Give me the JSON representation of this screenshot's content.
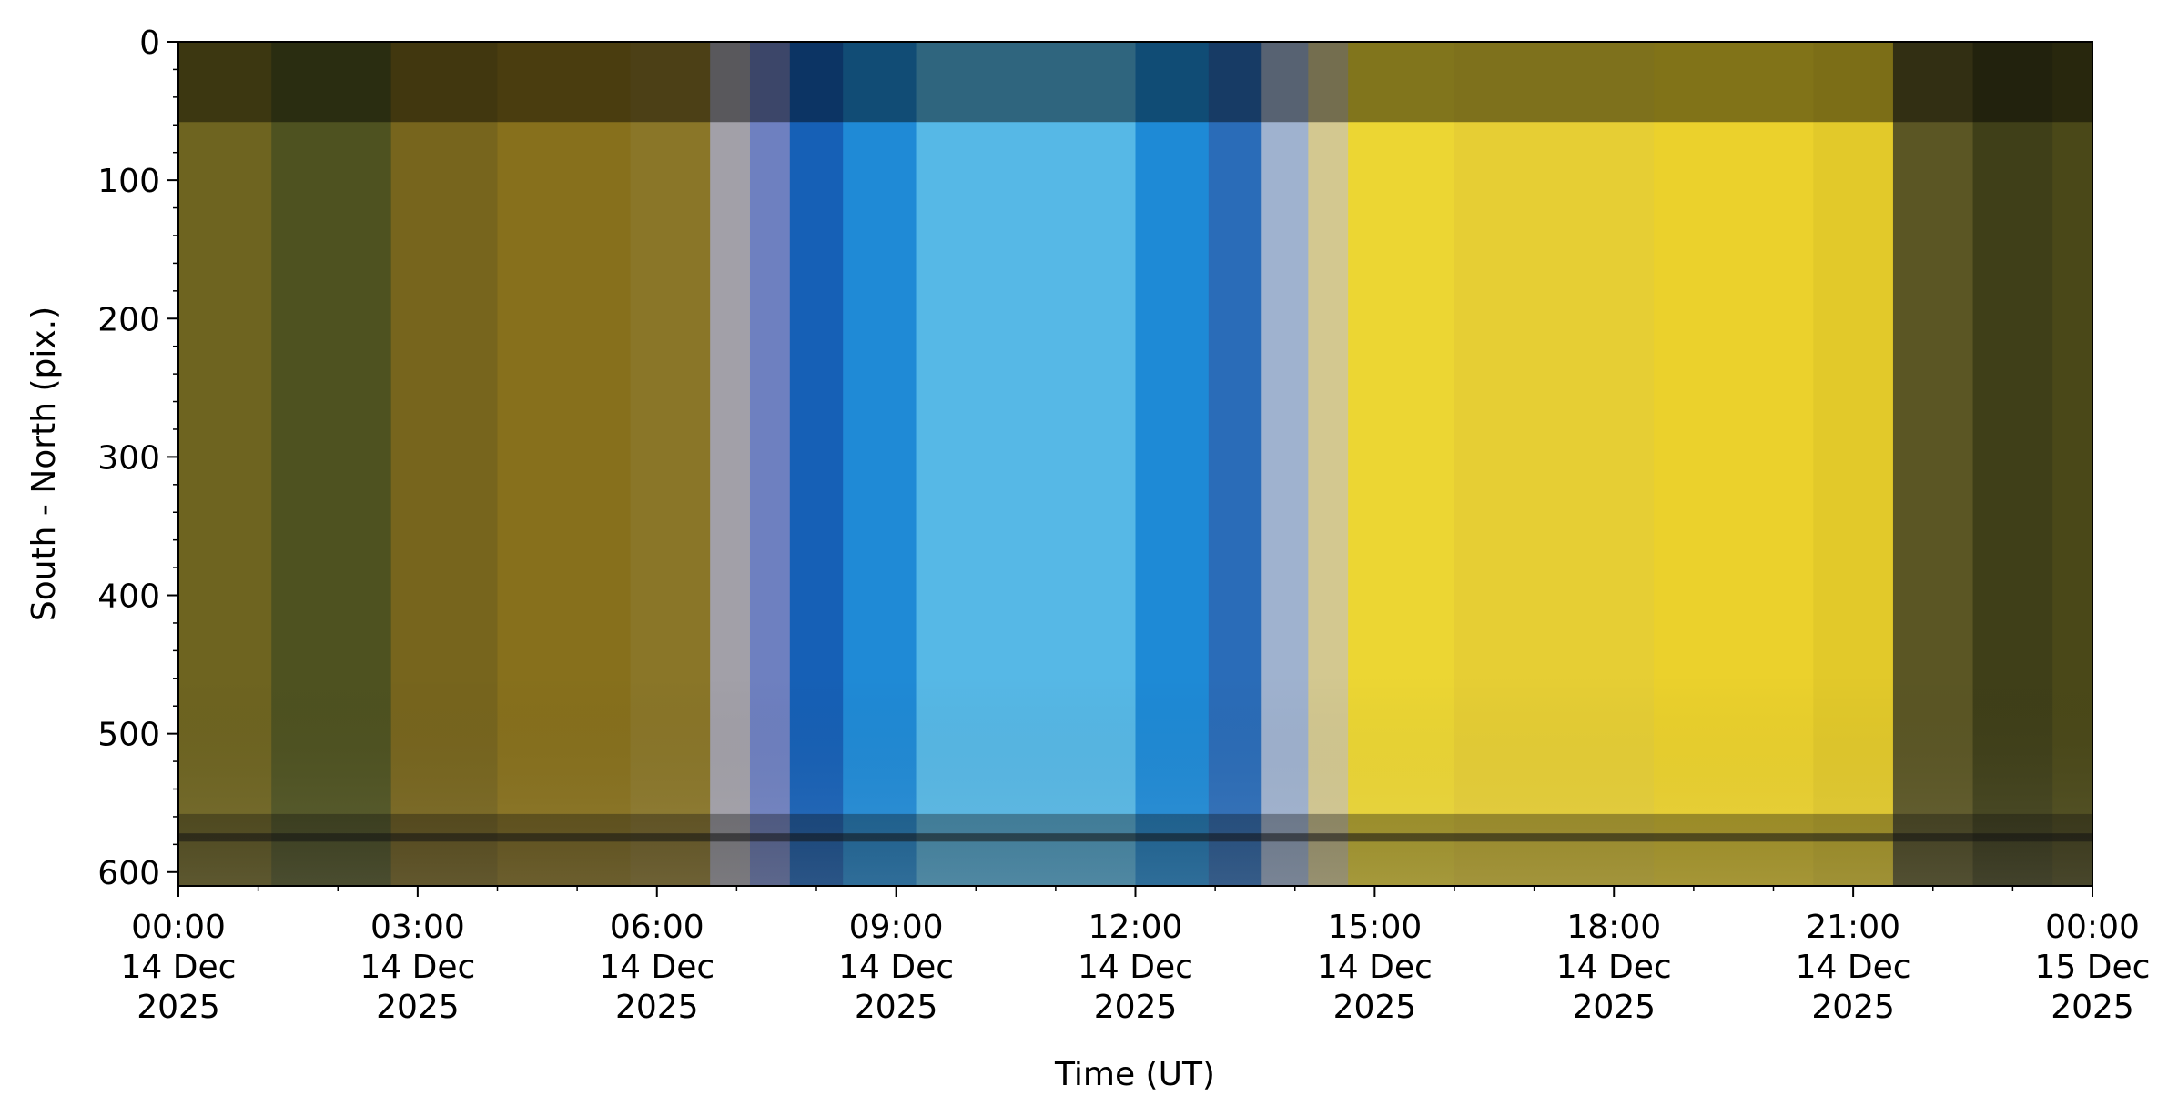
{
  "chart_data": {
    "type": "heatmap",
    "title": "",
    "xlabel": "Time (UT)",
    "ylabel": "South - North (pix.)",
    "xlim": [
      "2025-12-14T00:00",
      "2025-12-15T00:00"
    ],
    "ylim": [
      610,
      0
    ],
    "grid": false,
    "x_ticks": [
      {
        "time": "2025-12-14T00:00",
        "lines": [
          "00:00",
          "14 Dec",
          "2025"
        ]
      },
      {
        "time": "2025-12-14T03:00",
        "lines": [
          "03:00",
          "14 Dec",
          "2025"
        ]
      },
      {
        "time": "2025-12-14T06:00",
        "lines": [
          "06:00",
          "14 Dec",
          "2025"
        ]
      },
      {
        "time": "2025-12-14T09:00",
        "lines": [
          "09:00",
          "14 Dec",
          "2025"
        ]
      },
      {
        "time": "2025-12-14T12:00",
        "lines": [
          "12:00",
          "14 Dec",
          "2025"
        ]
      },
      {
        "time": "2025-12-14T15:00",
        "lines": [
          "15:00",
          "14 Dec",
          "2025"
        ]
      },
      {
        "time": "2025-12-14T18:00",
        "lines": [
          "18:00",
          "14 Dec",
          "2025"
        ]
      },
      {
        "time": "2025-12-14T21:00",
        "lines": [
          "21:00",
          "14 Dec",
          "2025"
        ]
      },
      {
        "time": "2025-12-15T00:00",
        "lines": [
          "00:00",
          "15 Dec",
          "2025"
        ]
      }
    ],
    "y_ticks": [
      0,
      100,
      200,
      300,
      400,
      500,
      600
    ],
    "color_bands": [
      {
        "start": "2025-12-14T00:00",
        "end": "2025-12-14T01:10",
        "color": "#6e6420"
      },
      {
        "start": "2025-12-14T01:10",
        "end": "2025-12-14T02:40",
        "color": "#4e5220"
      },
      {
        "start": "2025-12-14T02:40",
        "end": "2025-12-14T04:00",
        "color": "#77651d"
      },
      {
        "start": "2025-12-14T04:00",
        "end": "2025-12-14T05:40",
        "color": "#87701c"
      },
      {
        "start": "2025-12-14T05:40",
        "end": "2025-12-14T06:40",
        "color": "#8a7628"
      },
      {
        "start": "2025-12-14T06:40",
        "end": "2025-12-14T07:10",
        "color": "#a2a0a8"
      },
      {
        "start": "2025-12-14T07:10",
        "end": "2025-12-14T07:40",
        "color": "#6e80c0"
      },
      {
        "start": "2025-12-14T07:40",
        "end": "2025-12-14T08:20",
        "color": "#1660b6"
      },
      {
        "start": "2025-12-14T08:20",
        "end": "2025-12-14T09:15",
        "color": "#1f8ad6"
      },
      {
        "start": "2025-12-14T09:15",
        "end": "2025-12-14T12:00",
        "color": "#56b8e6"
      },
      {
        "start": "2025-12-14T12:00",
        "end": "2025-12-14T12:55",
        "color": "#1e8ad6"
      },
      {
        "start": "2025-12-14T12:55",
        "end": "2025-12-14T13:35",
        "color": "#2a6cb8"
      },
      {
        "start": "2025-12-14T13:35",
        "end": "2025-12-14T14:10",
        "color": "#9fb2cf"
      },
      {
        "start": "2025-12-14T14:10",
        "end": "2025-12-14T14:40",
        "color": "#d3c890"
      },
      {
        "start": "2025-12-14T14:40",
        "end": "2025-12-14T16:00",
        "color": "#ecd633"
      },
      {
        "start": "2025-12-14T16:00",
        "end": "2025-12-14T18:30",
        "color": "#e6ce34"
      },
      {
        "start": "2025-12-14T18:30",
        "end": "2025-12-14T20:30",
        "color": "#ebd12c"
      },
      {
        "start": "2025-12-14T20:30",
        "end": "2025-12-14T21:30",
        "color": "#e2c92a"
      },
      {
        "start": "2025-12-14T21:30",
        "end": "2025-12-14T22:30",
        "color": "#5b5624"
      },
      {
        "start": "2025-12-14T22:30",
        "end": "2025-12-14T23:30",
        "color": "#3f3f18"
      },
      {
        "start": "2025-12-14T23:30",
        "end": "2025-12-15T00:00",
        "color": "#4a4818"
      }
    ]
  }
}
